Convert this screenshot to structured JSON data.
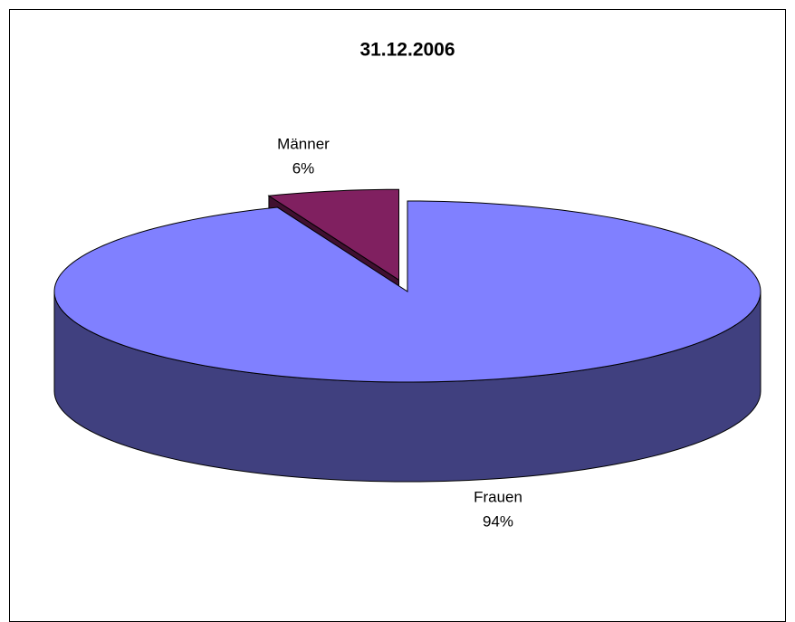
{
  "chart_data": {
    "type": "pie",
    "title": "31.12.2006",
    "categories": [
      "Männer",
      "Frauen"
    ],
    "values": [
      6,
      94
    ],
    "value_labels": [
      "6%",
      "94%"
    ],
    "colors": [
      "#802060",
      "#8080ff"
    ],
    "side_colors": [
      "#401030",
      "#40407f"
    ]
  }
}
